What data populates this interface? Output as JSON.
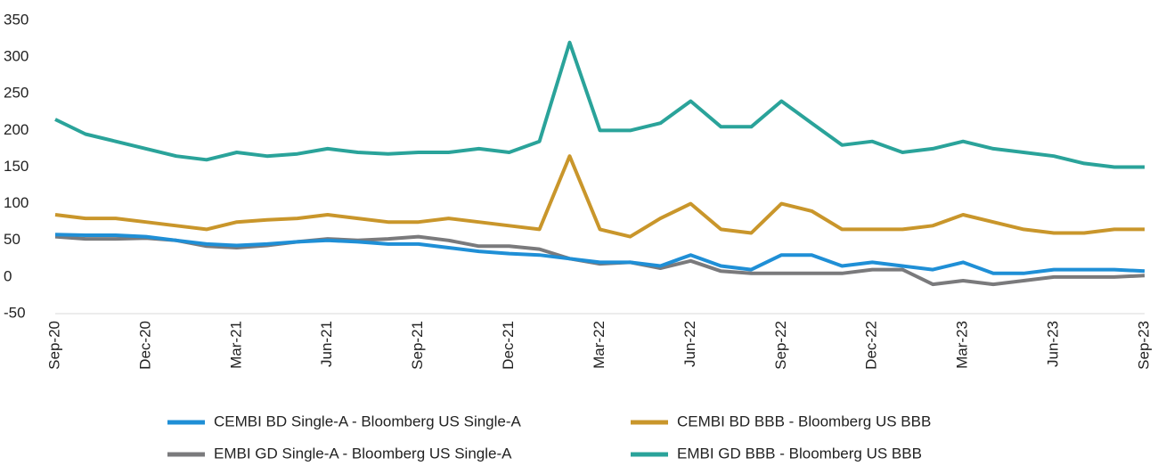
{
  "chart_data": {
    "type": "line",
    "categories": [
      "Sep-20",
      null,
      null,
      "Dec-20",
      null,
      null,
      "Mar-21",
      null,
      null,
      "Jun-21",
      null,
      null,
      "Sep-21",
      null,
      null,
      "Dec-21",
      null,
      null,
      "Mar-22",
      null,
      null,
      "Jun-22",
      null,
      null,
      "Sep-22",
      null,
      null,
      "Dec-22",
      null,
      null,
      "Mar-23",
      null,
      null,
      "Jun-23",
      null,
      null,
      "Sep-23"
    ],
    "series": [
      {
        "name": "CEMBI BD Single-A - Bloomberg US Single-A",
        "color": "#1f8fd6",
        "values": [
          58,
          57,
          57,
          55,
          50,
          45,
          43,
          45,
          48,
          50,
          48,
          45,
          45,
          40,
          35,
          32,
          30,
          25,
          20,
          20,
          15,
          30,
          15,
          10,
          30,
          30,
          15,
          20,
          15,
          10,
          20,
          5,
          5,
          10,
          10,
          10,
          8
        ]
      },
      {
        "name": "CEMBI BD BBB - Bloomberg US BBB",
        "color": "#c9962b",
        "values": [
          85,
          80,
          80,
          75,
          70,
          65,
          75,
          78,
          80,
          85,
          80,
          75,
          75,
          80,
          75,
          70,
          65,
          165,
          65,
          55,
          80,
          100,
          65,
          60,
          100,
          90,
          65,
          65,
          65,
          70,
          85,
          75,
          65,
          60,
          60,
          65,
          65
        ]
      },
      {
        "name": "EMBI GD Single-A - Bloomberg US Single-A",
        "color": "#7a7a7c",
        "values": [
          55,
          52,
          52,
          53,
          50,
          42,
          40,
          43,
          48,
          52,
          50,
          52,
          55,
          50,
          42,
          42,
          38,
          25,
          18,
          20,
          12,
          22,
          8,
          5,
          5,
          5,
          5,
          10,
          10,
          -10,
          -5,
          -10,
          -5,
          0,
          0,
          0,
          2
        ]
      },
      {
        "name": "EMBI GD BBB - Bloomberg US BBB",
        "color": "#2aa39a",
        "values": [
          215,
          195,
          185,
          175,
          165,
          160,
          170,
          165,
          168,
          175,
          170,
          168,
          170,
          170,
          175,
          170,
          185,
          320,
          200,
          200,
          210,
          240,
          205,
          205,
          240,
          210,
          180,
          185,
          170,
          175,
          185,
          175,
          170,
          165,
          155,
          150,
          150
        ]
      }
    ],
    "ylim": [
      -50,
      350
    ],
    "yticks": [
      -50,
      0,
      50,
      100,
      150,
      200,
      250,
      300,
      350
    ],
    "grid": false
  }
}
